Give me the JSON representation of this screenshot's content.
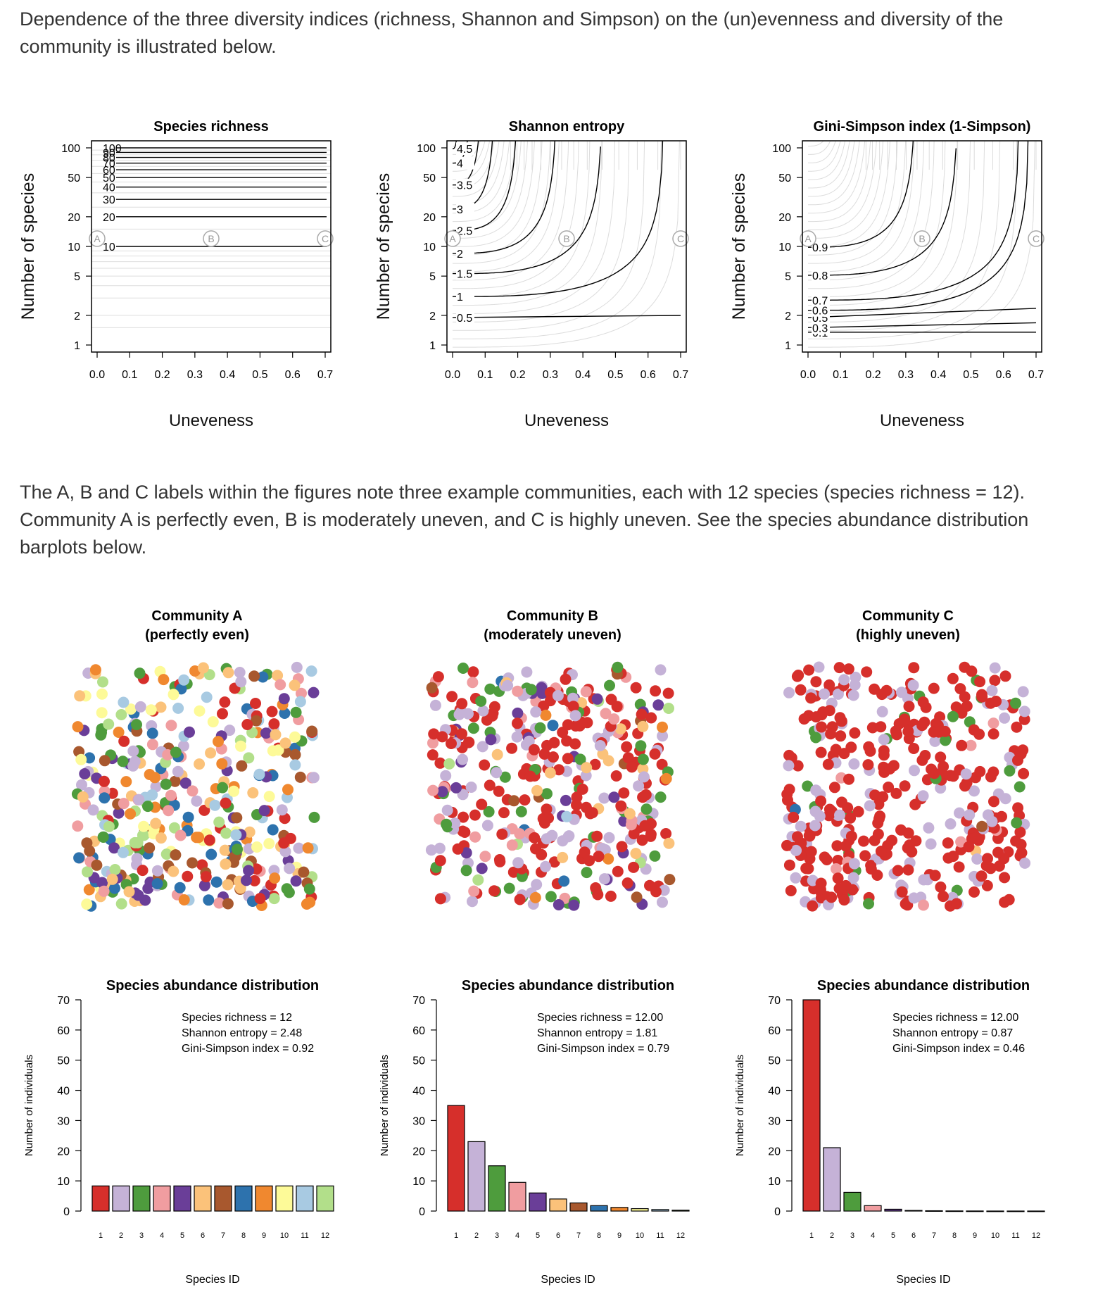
{
  "intro_text": "Dependence of the three diversity indices (richness, Shannon and Simpson) on the (un)evenness and diversity of the community is illustrated below.",
  "mid_text": "The A, B and C labels within the figures note three example communities, each with 12 species (species richness = 12). Community A is perfectly even, B is moderately uneven, and C is highly uneven. See the species abundance distribution barplots below.",
  "palette": [
    "#d62f2b",
    "#c5b2d7",
    "#4e9c3d",
    "#f09da0",
    "#6a3e98",
    "#fbc27a",
    "#a8582e",
    "#2d72ad",
    "#f0882f",
    "#fdfa98",
    "#a8cae2",
    "#b2df8a"
  ],
  "chart_data": [
    {
      "type": "contour",
      "title": "Species richness",
      "xlabel": "Uneveness",
      "ylabel": "Number of species",
      "xlim": [
        0,
        0.7
      ],
      "ylim": [
        1,
        100
      ],
      "y_scale": "log",
      "x_ticks": [
        "0.0",
        "0.1",
        "0.2",
        "0.3",
        "0.4",
        "0.5",
        "0.6",
        "0.7"
      ],
      "y_ticks": [
        1,
        2,
        5,
        10,
        20,
        50,
        100
      ],
      "contour_levels": [
        "10",
        "20",
        "30",
        "40",
        "50",
        "60",
        "70",
        "80",
        "90",
        "100"
      ],
      "markers": [
        {
          "label": "A",
          "x": 0.0,
          "y": 12
        },
        {
          "label": "B",
          "x": 0.35,
          "y": 12
        },
        {
          "label": "C",
          "x": 0.7,
          "y": 12
        }
      ]
    },
    {
      "type": "contour",
      "title": "Shannon entropy",
      "xlabel": "Uneveness",
      "ylabel": "Number of species",
      "xlim": [
        0,
        0.7
      ],
      "ylim": [
        1,
        100
      ],
      "y_scale": "log",
      "x_ticks": [
        "0.0",
        "0.1",
        "0.2",
        "0.3",
        "0.4",
        "0.5",
        "0.6",
        "0.7"
      ],
      "y_ticks": [
        1,
        2,
        5,
        10,
        20,
        50,
        100
      ],
      "contour_levels": [
        "0.5",
        "1",
        "1.5",
        "2",
        "2.5",
        "3",
        "3.5",
        "4",
        "4.5"
      ],
      "markers": [
        {
          "label": "A",
          "x": 0.0,
          "y": 12
        },
        {
          "label": "B",
          "x": 0.35,
          "y": 12
        },
        {
          "label": "C",
          "x": 0.7,
          "y": 12
        }
      ]
    },
    {
      "type": "contour",
      "title": "Gini-Simpson index (1-Simpson)",
      "xlabel": "Uneveness",
      "ylabel": "Number of species",
      "xlim": [
        0,
        0.7
      ],
      "ylim": [
        1,
        100
      ],
      "y_scale": "log",
      "x_ticks": [
        "0.0",
        "0.1",
        "0.2",
        "0.3",
        "0.4",
        "0.5",
        "0.6",
        "0.7"
      ],
      "y_ticks": [
        1,
        2,
        5,
        10,
        20,
        50,
        100
      ],
      "contour_levels": [
        "0.1",
        "0.3",
        "0.5",
        "0.6",
        "0.7",
        "0.8",
        "0.9"
      ],
      "markers": [
        {
          "label": "A",
          "x": 0.0,
          "y": 12
        },
        {
          "label": "B",
          "x": 0.35,
          "y": 12
        },
        {
          "label": "C",
          "x": 0.7,
          "y": 12
        }
      ]
    },
    {
      "type": "scatter",
      "title_lines": [
        "Community A",
        "(perfectly even)"
      ],
      "individuals": 400,
      "species_fractions": [
        0.0833,
        0.0833,
        0.0833,
        0.0833,
        0.0833,
        0.0833,
        0.0833,
        0.0833,
        0.0833,
        0.0833,
        0.0833,
        0.0833
      ]
    },
    {
      "type": "scatter",
      "title_lines": [
        "Community B",
        "(moderately uneven)"
      ],
      "individuals": 400,
      "species_fractions": [
        0.35,
        0.23,
        0.15,
        0.095,
        0.06,
        0.04,
        0.027,
        0.018,
        0.012,
        0.008,
        0.005,
        0.003
      ]
    },
    {
      "type": "scatter",
      "title_lines": [
        "Community C",
        "(highly uneven)"
      ],
      "individuals": 400,
      "species_fractions": [
        0.7,
        0.21,
        0.062,
        0.018,
        0.006,
        0.002,
        0.001,
        0.0005,
        0.0003,
        0.0001,
        0.0001,
        0.0001
      ]
    },
    {
      "type": "bar",
      "title": "Species abundance distribution",
      "xlabel": "Species ID",
      "ylabel": "Number of individuals",
      "ylim": [
        0,
        70
      ],
      "y_ticks": [
        0,
        10,
        20,
        30,
        40,
        50,
        60,
        70
      ],
      "categories": [
        "1",
        "2",
        "3",
        "4",
        "5",
        "6",
        "7",
        "8",
        "9",
        "10",
        "11",
        "12"
      ],
      "values": [
        8.33,
        8.33,
        8.33,
        8.33,
        8.33,
        8.33,
        8.33,
        8.33,
        8.33,
        8.33,
        8.33,
        8.33
      ],
      "annotations": [
        "Species richness = 12",
        "Shannon entropy = 2.48",
        "Gini-Simpson index = 0.92"
      ]
    },
    {
      "type": "bar",
      "title": "Species abundance distribution",
      "xlabel": "Species ID",
      "ylabel": "Number of individuals",
      "ylim": [
        0,
        70
      ],
      "y_ticks": [
        0,
        10,
        20,
        30,
        40,
        50,
        60,
        70
      ],
      "categories": [
        "1",
        "2",
        "3",
        "4",
        "5",
        "6",
        "7",
        "8",
        "9",
        "10",
        "11",
        "12"
      ],
      "values": [
        35,
        23,
        15,
        9.5,
        6,
        4,
        2.7,
        1.8,
        1.2,
        0.8,
        0.5,
        0.3
      ],
      "annotations": [
        "Species richness = 12.00",
        "Shannon entropy = 1.81",
        "Gini-Simpson index = 0.79"
      ]
    },
    {
      "type": "bar",
      "title": "Species abundance distribution",
      "xlabel": "Species ID",
      "ylabel": "Number of individuals",
      "ylim": [
        0,
        70
      ],
      "y_ticks": [
        0,
        10,
        20,
        30,
        40,
        50,
        60,
        70
      ],
      "categories": [
        "1",
        "2",
        "3",
        "4",
        "5",
        "6",
        "7",
        "8",
        "9",
        "10",
        "11",
        "12"
      ],
      "values": [
        70,
        21,
        6.2,
        1.8,
        0.6,
        0.2,
        0.1,
        0.05,
        0.03,
        0.01,
        0.01,
        0.01
      ],
      "annotations": [
        "Species richness = 12.00",
        "Shannon entropy = 0.87",
        "Gini-Simpson index = 0.46"
      ]
    }
  ]
}
